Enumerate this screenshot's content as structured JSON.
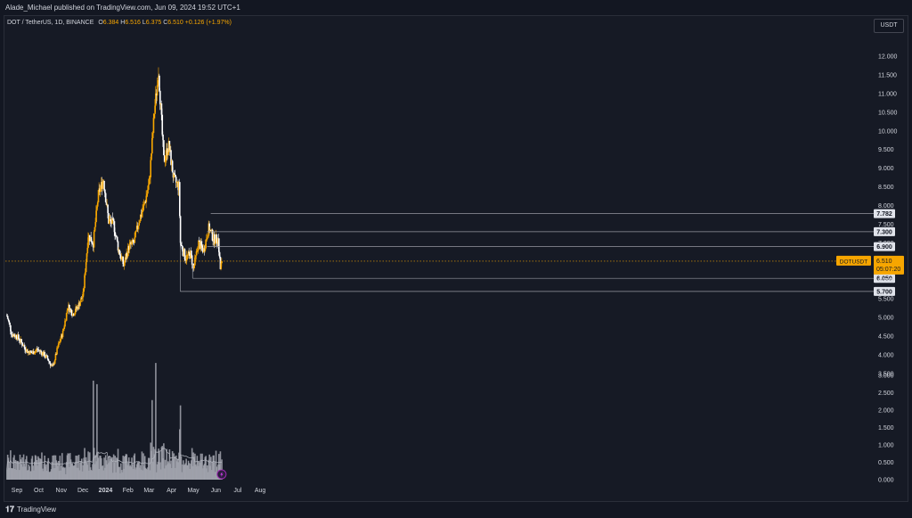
{
  "header": {
    "published_by": "Alade_Michael published on TradingView.com, Jun 09, 2024 19:52 UTC+1"
  },
  "legend": {
    "symbol": "DOT / TetherUS, 1D, BINANCE",
    "open_label": "O",
    "open": "6.384",
    "high_label": "H",
    "high": "6.516",
    "low_label": "L",
    "low": "6.375",
    "close_label": "C",
    "close": "6.510",
    "change": "+0.126 (+1.97%)"
  },
  "currency_label": "USDT",
  "footer": {
    "logo_text": "TradingView",
    "logo_glyph": "𝟏𝟕"
  },
  "price_tag": {
    "symbol": "DOTUSDT",
    "price": "6.510",
    "countdown": "05:07:20"
  },
  "horizontal_levels": [
    {
      "value": 7.782,
      "label": "7.782"
    },
    {
      "value": 7.3,
      "label": "7.300"
    },
    {
      "value": 6.9,
      "label": "6.900"
    },
    {
      "value": 6.05,
      "label": "6.050"
    },
    {
      "value": 5.7,
      "label": "5.700"
    }
  ],
  "colors": {
    "up": "#f7a600",
    "down": "#ffffff",
    "volume": "#a3a6af",
    "volume_ma": "#b2b5be",
    "grid": "#1e222d",
    "level_line": "#9598a1",
    "last_price_line": "#f7a600"
  },
  "chart_data": [
    {
      "type": "candlestick",
      "title": "DOT / TetherUS, 1D, BINANCE",
      "y_scale": "linear",
      "ylim": [
        3.4,
        12.2
      ],
      "y_ticks": [
        "12.000",
        "11.500",
        "11.000",
        "10.500",
        "10.000",
        "9.500",
        "9.000",
        "8.500",
        "8.000",
        "7.500",
        "7.000",
        "6.500",
        "6.000",
        "5.500",
        "5.000",
        "4.500",
        "4.000",
        "3.500"
      ],
      "x_ticks": [
        "Sep",
        "Oct",
        "Nov",
        "Dec",
        "2024",
        "Feb",
        "Mar",
        "Apr",
        "May",
        "Jun",
        "Jul",
        "Aug"
      ],
      "grid": false,
      "approx_close_series": [
        {
          "date": "2023-08-18",
          "close": 5.05
        },
        {
          "date": "2023-08-25",
          "close": 4.55
        },
        {
          "date": "2023-09-01",
          "close": 4.5
        },
        {
          "date": "2023-09-08",
          "close": 4.3
        },
        {
          "date": "2023-09-15",
          "close": 4.1
        },
        {
          "date": "2023-09-22",
          "close": 4.05
        },
        {
          "date": "2023-09-29",
          "close": 4.15
        },
        {
          "date": "2023-10-06",
          "close": 4.05
        },
        {
          "date": "2023-10-13",
          "close": 3.9
        },
        {
          "date": "2023-10-20",
          "close": 3.65
        },
        {
          "date": "2023-10-27",
          "close": 4.2
        },
        {
          "date": "2023-11-03",
          "close": 4.6
        },
        {
          "date": "2023-11-10",
          "close": 5.3
        },
        {
          "date": "2023-11-17",
          "close": 5.1
        },
        {
          "date": "2023-11-24",
          "close": 5.3
        },
        {
          "date": "2023-12-01",
          "close": 5.6
        },
        {
          "date": "2023-12-08",
          "close": 7.2
        },
        {
          "date": "2023-12-15",
          "close": 7.0
        },
        {
          "date": "2023-12-22",
          "close": 8.3
        },
        {
          "date": "2023-12-29",
          "close": 8.7
        },
        {
          "date": "2024-01-05",
          "close": 7.6
        },
        {
          "date": "2024-01-12",
          "close": 7.5
        },
        {
          "date": "2024-01-19",
          "close": 6.8
        },
        {
          "date": "2024-01-26",
          "close": 6.4
        },
        {
          "date": "2024-02-02",
          "close": 6.9
        },
        {
          "date": "2024-02-09",
          "close": 7.0
        },
        {
          "date": "2024-02-16",
          "close": 7.6
        },
        {
          "date": "2024-02-23",
          "close": 8.0
        },
        {
          "date": "2024-03-01",
          "close": 8.6
        },
        {
          "date": "2024-03-08",
          "close": 10.5
        },
        {
          "date": "2024-03-14",
          "close": 11.6
        },
        {
          "date": "2024-03-21",
          "close": 9.2
        },
        {
          "date": "2024-03-28",
          "close": 9.6
        },
        {
          "date": "2024-04-04",
          "close": 8.7
        },
        {
          "date": "2024-04-11",
          "close": 8.5
        },
        {
          "date": "2024-04-13",
          "close": 7.0
        },
        {
          "date": "2024-04-20",
          "close": 6.6
        },
        {
          "date": "2024-04-27",
          "close": 6.7
        },
        {
          "date": "2024-05-01",
          "close": 6.3
        },
        {
          "date": "2024-05-08",
          "close": 7.0
        },
        {
          "date": "2024-05-15",
          "close": 6.8
        },
        {
          "date": "2024-05-22",
          "close": 7.4
        },
        {
          "date": "2024-05-29",
          "close": 7.1
        },
        {
          "date": "2024-06-04",
          "close": 7.1
        },
        {
          "date": "2024-06-07",
          "close": 6.3
        },
        {
          "date": "2024-06-09",
          "close": 6.51
        }
      ]
    },
    {
      "type": "bar",
      "title": "Volume",
      "ylim": [
        0,
        3.2
      ],
      "y_ticks": [
        "3.000",
        "2.500",
        "2.000",
        "1.500",
        "1.000",
        "0.500",
        "0.000"
      ],
      "peaks": [
        {
          "date": "2023-12-15",
          "value": 2.8
        },
        {
          "date": "2023-12-20",
          "value": 2.7
        },
        {
          "date": "2024-03-05",
          "value": 2.25
        },
        {
          "date": "2024-03-10",
          "value": 3.3
        },
        {
          "date": "2024-04-13",
          "value": 2.1
        },
        {
          "date": "2024-06-07",
          "value": 0.8
        }
      ]
    }
  ]
}
